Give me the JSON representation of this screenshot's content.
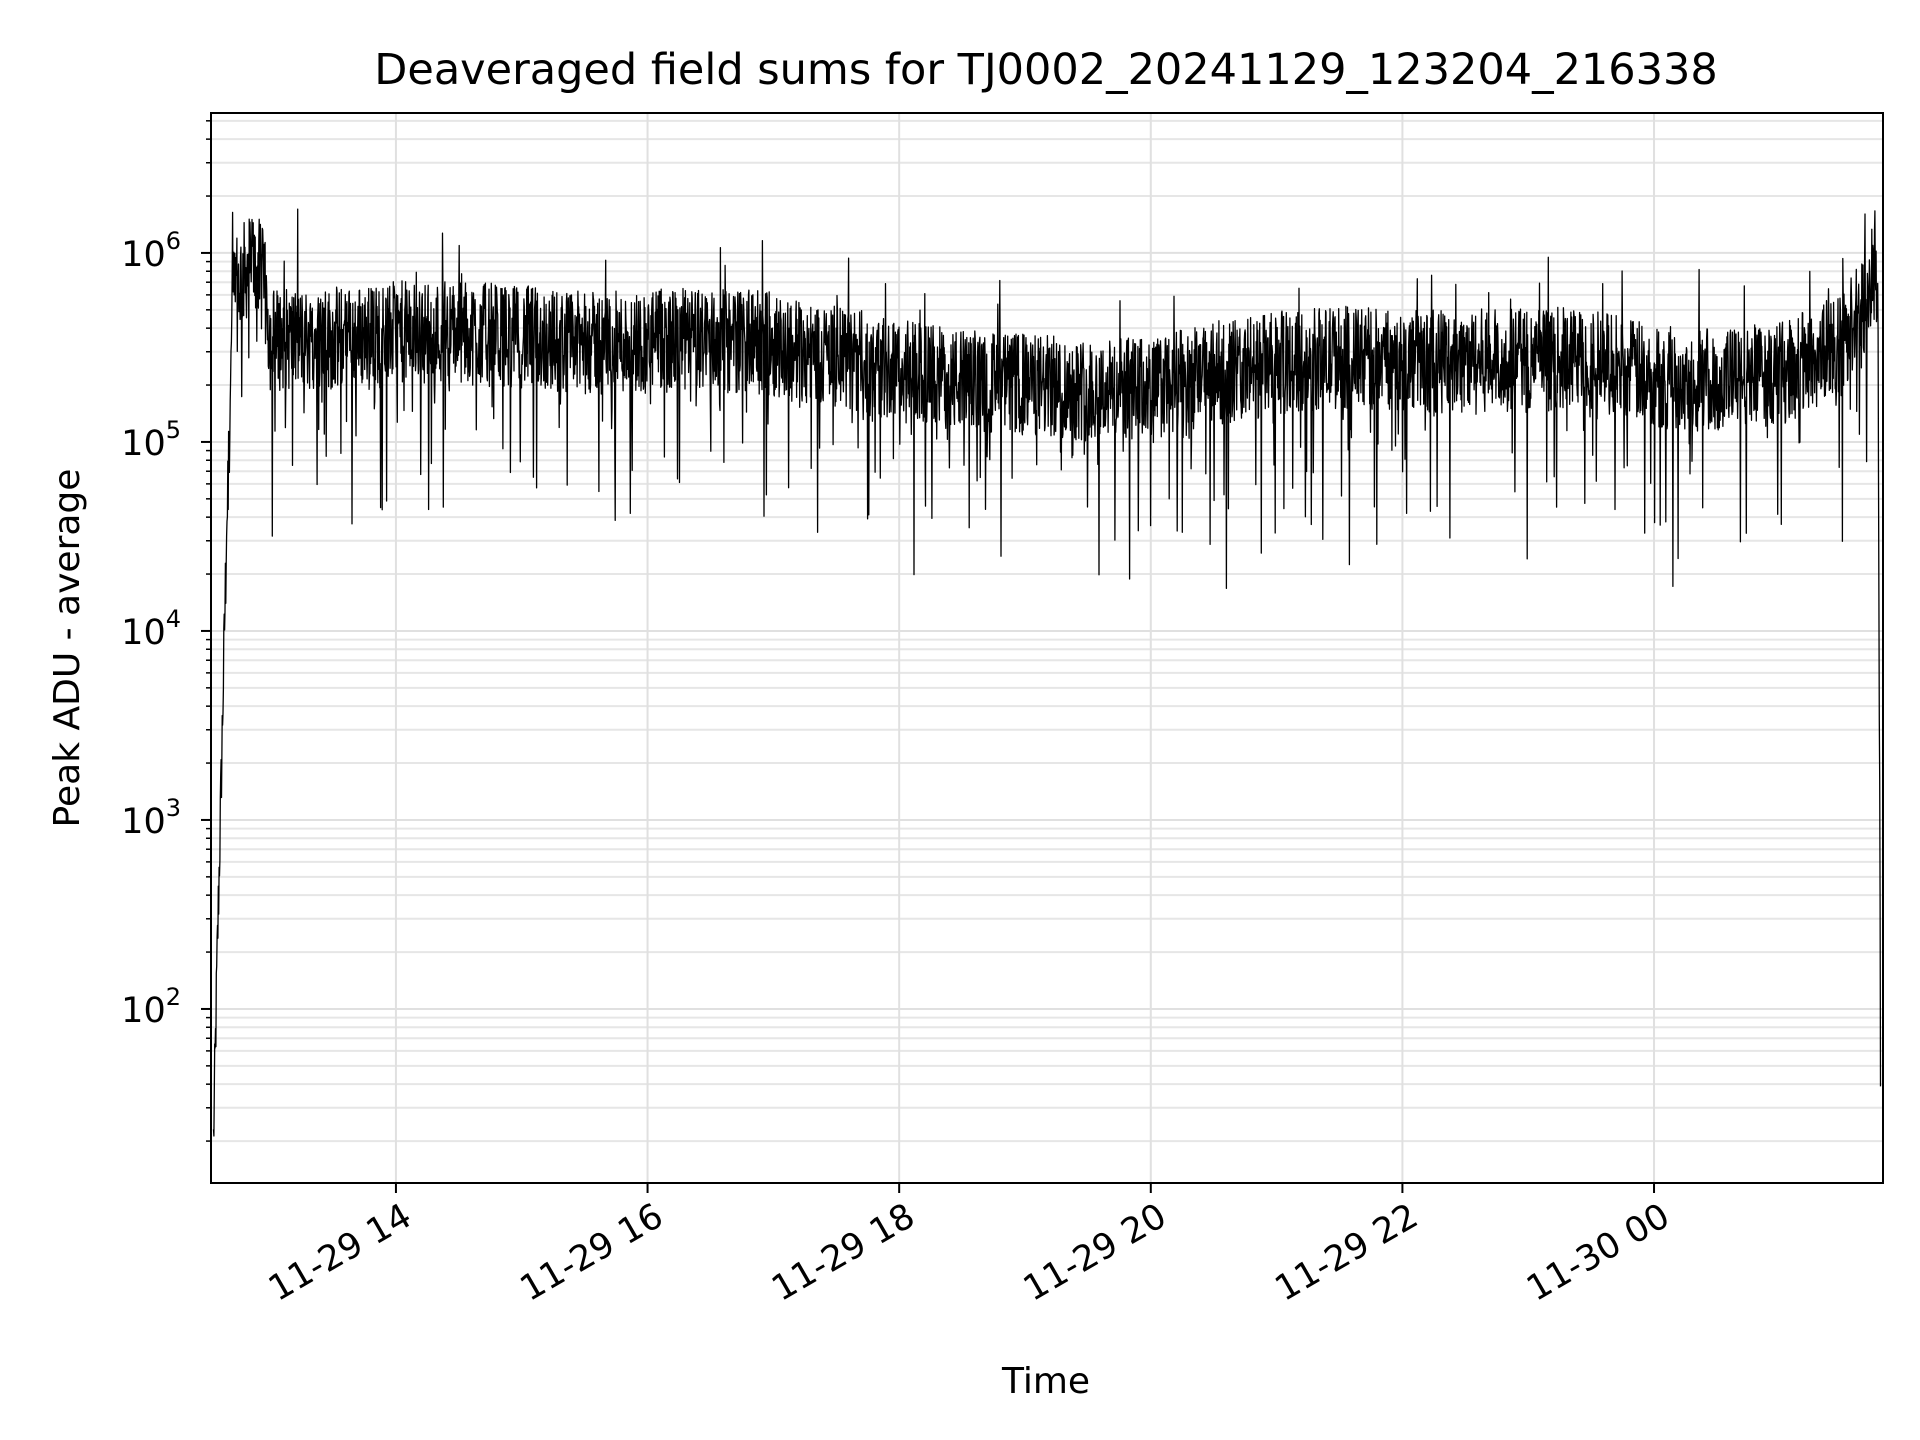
{
  "chart_data": {
    "type": "line",
    "title": "Deaveraged field sums for TJ0002_20241129_123204_216338",
    "xlabel": "Time",
    "ylabel": "Peak ADU - average",
    "yscale": "log",
    "ylim": [
      12,
      5500000
    ],
    "xlim_hours": [
      12.53,
      25.82
    ],
    "grid": true,
    "line_color": "#000000",
    "x_ticks": [
      {
        "hour": 14,
        "label": "11-29 14"
      },
      {
        "hour": 16,
        "label": "11-29 16"
      },
      {
        "hour": 18,
        "label": "11-29 18"
      },
      {
        "hour": 20,
        "label": "11-29 20"
      },
      {
        "hour": 22,
        "label": "11-29 22"
      },
      {
        "hour": 24,
        "label": "11-30 00"
      }
    ],
    "y_ticks": [
      {
        "value": 100,
        "base": "10",
        "exp": "2"
      },
      {
        "value": 1000,
        "base": "10",
        "exp": "3"
      },
      {
        "value": 10000,
        "base": "10",
        "exp": "4"
      },
      {
        "value": 100000,
        "base": "10",
        "exp": "5"
      },
      {
        "value": 1000000,
        "base": "10",
        "exp": "6"
      }
    ],
    "series": [
      {
        "name": "Peak ADU - average",
        "x_hours": [
          12.55,
          12.58,
          12.62,
          12.66,
          12.7,
          12.75,
          12.8,
          12.85,
          12.9,
          12.95,
          13.0,
          13.5,
          14.0,
          14.5,
          15.0,
          15.5,
          16.0,
          16.5,
          17.0,
          17.5,
          18.0,
          18.5,
          19.0,
          19.5,
          20.0,
          20.5,
          21.0,
          21.5,
          22.0,
          22.5,
          23.0,
          23.5,
          24.0,
          24.5,
          25.0,
          25.3,
          25.5,
          25.6,
          25.7,
          25.75,
          25.78,
          25.8
        ],
        "envelope_median": [
          20,
          200,
          3000,
          50000,
          500000,
          700000,
          800000,
          900000,
          850000,
          700000,
          350000,
          350000,
          380000,
          380000,
          360000,
          330000,
          340000,
          350000,
          330000,
          280000,
          240000,
          210000,
          200000,
          190000,
          190000,
          230000,
          260000,
          280000,
          270000,
          270000,
          270000,
          280000,
          220000,
          210000,
          230000,
          280000,
          350000,
          450000,
          600000,
          800000,
          500000,
          60
        ]
      }
    ]
  }
}
